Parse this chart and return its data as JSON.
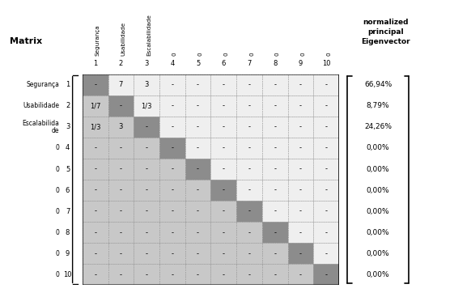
{
  "title_left": "Matrix",
  "title_right": "normalized\nprincipal\nEigenvector",
  "col_headers": [
    "Segurança",
    "Usabilidade",
    "Escalabilidade",
    "0",
    "0",
    "0",
    "0",
    "0",
    "0",
    "0"
  ],
  "col_numbers": [
    "1",
    "2",
    "3",
    "4",
    "5",
    "6",
    "7",
    "8",
    "9",
    "10"
  ],
  "row_labels_text": [
    "Segurança",
    "Usabilidade",
    "Escalabilida\nde",
    "0",
    "0",
    "0",
    "0",
    "0",
    "0",
    "0"
  ],
  "row_numbers": [
    "1",
    "2",
    "3",
    "4",
    "5",
    "6",
    "7",
    "8",
    "9",
    "10"
  ],
  "eigenvector": [
    "66,94%",
    "8,79%",
    "24,26%",
    "0,00%",
    "0,00%",
    "0,00%",
    "0,00%",
    "0,00%",
    "0,00%",
    "0,00%"
  ],
  "matrix_cells": [
    [
      "-",
      "7",
      "3",
      "-",
      "-",
      "-",
      "-",
      "-",
      "-",
      "-"
    ],
    [
      "1/7",
      "-",
      "1/3",
      "-",
      "-",
      "-",
      "-",
      "-",
      "-",
      "-"
    ],
    [
      "1/3",
      "3",
      "-",
      "-",
      "-",
      "-",
      "-",
      "-",
      "-",
      "-"
    ],
    [
      "-",
      "-",
      "-",
      "-",
      "-",
      "-",
      "-",
      "-",
      "-",
      "-"
    ],
    [
      "-",
      "-",
      "-",
      "-",
      "-",
      "-",
      "-",
      "-",
      "-",
      "-"
    ],
    [
      "-",
      "-",
      "-",
      "-",
      "-",
      "-",
      "-",
      "-",
      "-",
      "-"
    ],
    [
      "-",
      "-",
      "-",
      "-",
      "-",
      "-",
      "-",
      "-",
      "-",
      "-"
    ],
    [
      "-",
      "-",
      "-",
      "-",
      "-",
      "-",
      "-",
      "-",
      "-",
      "-"
    ],
    [
      "-",
      "-",
      "-",
      "-",
      "-",
      "-",
      "-",
      "-",
      "-",
      "-"
    ],
    [
      "-",
      "-",
      "-",
      "-",
      "-",
      "-",
      "-",
      "-",
      "-",
      "-"
    ]
  ],
  "color_diagonal": "#8c8c8c",
  "color_lower": "#c8c8c8",
  "color_upper": "#efefef",
  "n": 10,
  "figsize": [
    5.82,
    3.67
  ],
  "dpi": 100
}
